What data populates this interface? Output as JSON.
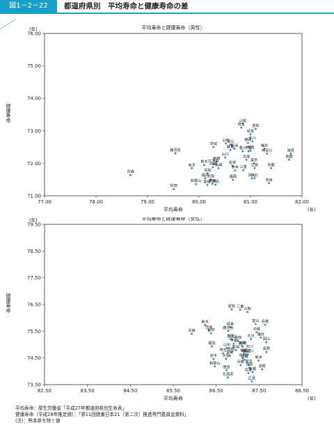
{
  "header": {
    "figure_tag": "図1－2－22",
    "title": "都道府県別　平均寿命と健康寿命の差"
  },
  "chart_data": [
    {
      "type": "scatter",
      "title": "平均寿命と健康寿命（男性）",
      "xlabel": "平均寿命",
      "ylabel": "健康寿命",
      "xunit": "(年)",
      "yunit": "(年)",
      "xlim": [
        77.0,
        82.0
      ],
      "ylim": [
        71.0,
        76.0
      ],
      "xticks": [
        "77.00",
        "78.00",
        "79.00",
        "80.00",
        "81.00",
        "82.00"
      ],
      "yticks": [
        "71.00",
        "72.00",
        "73.00",
        "74.00",
        "75.00",
        "76.00"
      ],
      "reference_line": "y = x",
      "points": [
        {
          "label": "青森",
          "x": 78.67,
          "y": 71.64
        },
        {
          "label": "秋田",
          "x": 79.51,
          "y": 71.21
        },
        {
          "label": "山梨",
          "x": 80.85,
          "y": 73.21
        },
        {
          "label": "愛知",
          "x": 81.1,
          "y": 73.06
        },
        {
          "label": "埼玉",
          "x": 80.82,
          "y": 73.1
        },
        {
          "label": "岐阜",
          "x": 81.0,
          "y": 72.89
        },
        {
          "label": "石川",
          "x": 81.04,
          "y": 72.67
        },
        {
          "label": "静岡",
          "x": 80.95,
          "y": 72.63
        },
        {
          "label": "山形",
          "x": 80.52,
          "y": 72.61
        },
        {
          "label": "富山",
          "x": 80.61,
          "y": 72.58
        },
        {
          "label": "茨城",
          "x": 80.28,
          "y": 72.5
        },
        {
          "label": "群馬",
          "x": 80.61,
          "y": 72.41
        },
        {
          "label": "新潟",
          "x": 80.69,
          "y": 72.45
        },
        {
          "label": "千葉",
          "x": 80.96,
          "y": 72.37
        },
        {
          "label": "宮城",
          "x": 81.0,
          "y": 72.39
        },
        {
          "label": "福井",
          "x": 81.27,
          "y": 72.45
        },
        {
          "label": "神奈川",
          "x": 81.32,
          "y": 72.3
        },
        {
          "label": "鹿児島",
          "x": 79.54,
          "y": 72.31
        },
        {
          "label": "山口",
          "x": 80.51,
          "y": 72.18
        },
        {
          "label": "香川",
          "x": 80.85,
          "y": 72.37
        },
        {
          "label": "滋賀",
          "x": 81.78,
          "y": 72.3
        },
        {
          "label": "宮崎",
          "x": 80.34,
          "y": 72.05
        },
        {
          "label": "兵庫",
          "x": 80.92,
          "y": 72.11
        },
        {
          "label": "東京",
          "x": 81.07,
          "y": 72.0
        },
        {
          "label": "長野",
          "x": 81.75,
          "y": 72.11
        },
        {
          "label": "栃木",
          "x": 80.1,
          "y": 71.95
        },
        {
          "label": "北海道",
          "x": 80.28,
          "y": 71.98
        },
        {
          "label": "佐賀",
          "x": 80.65,
          "y": 71.92
        },
        {
          "label": "三重",
          "x": 80.86,
          "y": 71.79
        },
        {
          "label": "熊本",
          "x": 80.7,
          "y": 71.78
        },
        {
          "label": "広島",
          "x": 81.08,
          "y": 71.85
        },
        {
          "label": "沖縄",
          "x": 80.27,
          "y": 71.88
        },
        {
          "label": "岩手",
          "x": 79.86,
          "y": 71.85
        },
        {
          "label": "長崎",
          "x": 80.38,
          "y": 71.85
        },
        {
          "label": "鳥取",
          "x": 80.17,
          "y": 71.69
        },
        {
          "label": "京都",
          "x": 81.4,
          "y": 71.85
        },
        {
          "label": "大分",
          "x": 81.08,
          "y": 71.54
        },
        {
          "label": "大阪",
          "x": 80.23,
          "y": 71.5
        },
        {
          "label": "岡山",
          "x": 81.03,
          "y": 71.54
        },
        {
          "label": "福島",
          "x": 80.12,
          "y": 71.54
        },
        {
          "label": "高知",
          "x": 80.26,
          "y": 71.37
        },
        {
          "label": "和歌山",
          "x": 79.94,
          "y": 71.36
        },
        {
          "label": "奈良",
          "x": 81.36,
          "y": 71.39
        },
        {
          "label": "徳島",
          "x": 80.32,
          "y": 71.34
        },
        {
          "label": "愛媛",
          "x": 80.16,
          "y": 71.33
        },
        {
          "label": "福岡",
          "x": 80.66,
          "y": 71.49
        }
      ]
    },
    {
      "type": "scatter",
      "title": "平均寿命と健康寿命（女性）",
      "xlabel": "平均寿命",
      "ylabel": "健康寿命",
      "xunit": "(年)",
      "yunit": "(年)",
      "xlim": [
        82.5,
        88.5
      ],
      "ylim": [
        73.5,
        79.5
      ],
      "xticks": [
        "82.50",
        "83.50",
        "84.50",
        "85.50",
        "86.50",
        "87.50",
        "88.50"
      ],
      "yticks": [
        "73.50",
        "74.50",
        "75.50",
        "76.50",
        "77.50",
        "78.50",
        "79.50"
      ],
      "reference_line": "y = x",
      "points": [
        {
          "label": "愛知",
          "x": 86.86,
          "y": 76.32
        },
        {
          "label": "三重",
          "x": 87.06,
          "y": 76.3
        },
        {
          "label": "山梨",
          "x": 87.23,
          "y": 76.22
        },
        {
          "label": "栃木",
          "x": 86.24,
          "y": 75.73
        },
        {
          "label": "茨城",
          "x": 86.33,
          "y": 75.52
        },
        {
          "label": "青森",
          "x": 85.93,
          "y": 75.4
        },
        {
          "label": "岐阜",
          "x": 86.83,
          "y": 75.65
        },
        {
          "label": "島根",
          "x": 87.64,
          "y": 75.74
        },
        {
          "label": "鹿児島",
          "x": 86.78,
          "y": 75.51
        },
        {
          "label": "富山",
          "x": 87.42,
          "y": 75.77
        },
        {
          "label": "沖縄",
          "x": 87.44,
          "y": 75.46
        },
        {
          "label": "秋田",
          "x": 86.38,
          "y": 75.43
        },
        {
          "label": "群馬",
          "x": 86.84,
          "y": 75.2
        },
        {
          "label": "福井",
          "x": 87.54,
          "y": 75.26
        },
        {
          "label": "山口",
          "x": 86.88,
          "y": 75.18
        },
        {
          "label": "高知",
          "x": 87.01,
          "y": 75.15
        },
        {
          "label": "大分",
          "x": 87.31,
          "y": 75.21
        },
        {
          "label": "岡山",
          "x": 87.67,
          "y": 75.09
        },
        {
          "label": "千葉",
          "x": 86.91,
          "y": 75.03
        },
        {
          "label": "静岡",
          "x": 87.1,
          "y": 74.94
        },
        {
          "label": "福島",
          "x": 86.4,
          "y": 74.93
        },
        {
          "label": "山形",
          "x": 86.75,
          "y": 74.87
        },
        {
          "label": "長野",
          "x": 87.67,
          "y": 74.72
        },
        {
          "label": "愛媛",
          "x": 86.82,
          "y": 74.59
        },
        {
          "label": "香川",
          "x": 87.21,
          "y": 74.62
        },
        {
          "label": "神奈川",
          "x": 87.24,
          "y": 74.63
        },
        {
          "label": "埼玉",
          "x": 86.66,
          "y": 74.67
        },
        {
          "label": "宮城",
          "x": 87.16,
          "y": 74.43
        },
        {
          "label": "岩手",
          "x": 86.44,
          "y": 74.46
        },
        {
          "label": "大阪",
          "x": 86.73,
          "y": 74.46
        },
        {
          "label": "新潟",
          "x": 86.96,
          "y": 74.79
        },
        {
          "label": "熊本",
          "x": 87.49,
          "y": 74.4
        },
        {
          "label": "和歌山",
          "x": 86.47,
          "y": 74.18
        },
        {
          "label": "兵庫",
          "x": 87.07,
          "y": 74.23
        },
        {
          "label": "東京",
          "x": 87.26,
          "y": 74.24
        },
        {
          "label": "鳥取",
          "x": 87.27,
          "y": 74.14
        },
        {
          "label": "滋賀",
          "x": 87.57,
          "y": 74.07
        },
        {
          "label": "長崎",
          "x": 86.84,
          "y": 74.71
        },
        {
          "label": "佐賀",
          "x": 87.12,
          "y": 74.48
        },
        {
          "label": "宮崎",
          "x": 87.12,
          "y": 74.93
        },
        {
          "label": "石川",
          "x": 87.28,
          "y": 74.8
        },
        {
          "label": "徳島",
          "x": 86.74,
          "y": 74.04
        },
        {
          "label": "福岡",
          "x": 87.14,
          "y": 74.66
        },
        {
          "label": "奈良",
          "x": 87.25,
          "y": 73.93
        },
        {
          "label": "京都",
          "x": 87.35,
          "y": 73.97
        },
        {
          "label": "広島",
          "x": 87.33,
          "y": 73.62
        },
        {
          "label": "北海道",
          "x": 86.77,
          "y": 73.77
        }
      ]
    }
  ],
  "notes": [
    "平均寿命：厚生労働省「平成27年都道府県別生命表」",
    "健康寿命（平成28年推定値）：「第11回健康日本21（第二次）推進専門委員会資料」",
    "(注)：熊本県を除く値"
  ],
  "colors": {
    "accent": "#17a0c8",
    "point": "#2e86c1",
    "reference_line": "#5fb4dc",
    "frame": "#333333"
  }
}
